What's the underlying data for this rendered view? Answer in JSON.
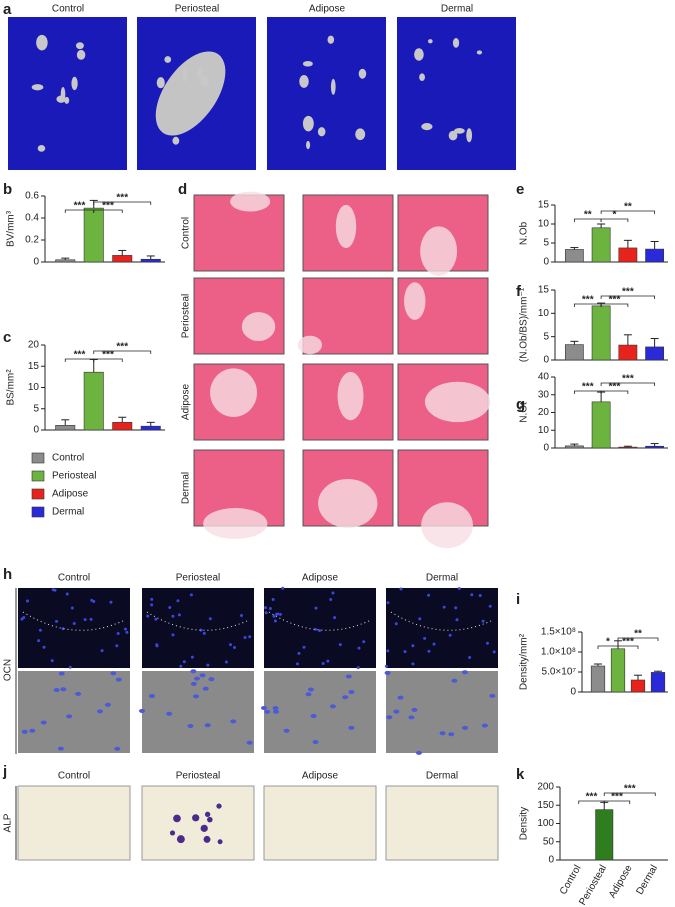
{
  "figure": {
    "a": {
      "letter": "a",
      "columns": [
        "Control",
        "Periosteal",
        "Adipose",
        "Dermal"
      ]
    },
    "d": {
      "letter": "d",
      "rows": [
        "Control",
        "Periosteal",
        "Adipose",
        "Dermal"
      ]
    },
    "h": {
      "letter": "h",
      "columns": [
        "Control",
        "Periosteal",
        "Adipose",
        "Dermal"
      ],
      "row_label": "OCN"
    },
    "j": {
      "letter": "j",
      "columns": [
        "Control",
        "Periosteal",
        "Adipose",
        "Dermal"
      ],
      "row_label": "ALP"
    }
  },
  "legend": [
    {
      "name": "Control",
      "color": "#8c8c8c"
    },
    {
      "name": "Periosteal",
      "color": "#6db33f"
    },
    {
      "name": "Adipose",
      "color": "#e8231e"
    },
    {
      "name": "Dermal",
      "color": "#2a2ad8"
    }
  ],
  "chart_data": [
    {
      "letter": "b",
      "type": "bar",
      "ylabel": "BV/mm³",
      "categories": [
        null,
        null,
        null,
        null
      ],
      "colors": [
        "#8c8c8c",
        "#6db33f",
        "#e8231e",
        "#2a2ad8"
      ],
      "values": [
        0.02,
        0.49,
        0.06,
        0.025
      ],
      "errors": [
        0.015,
        0.07,
        0.045,
        0.03
      ],
      "ylim": [
        0,
        0.6
      ],
      "yticks": [
        0,
        0.2,
        0.4,
        0.6
      ],
      "significance": [
        {
          "label": "***",
          "between": [
            0,
            1
          ]
        },
        {
          "label": "***",
          "between": [
            1,
            2
          ]
        },
        {
          "label": "***",
          "between": [
            1,
            3
          ]
        }
      ]
    },
    {
      "letter": "c",
      "type": "bar",
      "ylabel": "BS/mm²",
      "categories": [
        null,
        null,
        null,
        null
      ],
      "colors": [
        "#8c8c8c",
        "#6db33f",
        "#e8231e",
        "#2a2ad8"
      ],
      "values": [
        1.1,
        13.6,
        1.8,
        0.9
      ],
      "errors": [
        1.3,
        3,
        1.2,
        0.9
      ],
      "ylim": [
        0,
        20
      ],
      "yticks": [
        0,
        5,
        10,
        15,
        20
      ],
      "significance": [
        {
          "label": "***",
          "between": [
            0,
            1
          ]
        },
        {
          "label": "***",
          "between": [
            1,
            2
          ]
        },
        {
          "label": "***",
          "between": [
            1,
            3
          ]
        }
      ]
    },
    {
      "letter": "e",
      "type": "bar",
      "ylabel": "N.Ob",
      "categories": [
        null,
        null,
        null,
        null
      ],
      "colors": [
        "#8c8c8c",
        "#6db33f",
        "#e8231e",
        "#2a2ad8"
      ],
      "values": [
        3.3,
        9.0,
        3.7,
        3.4
      ],
      "errors": [
        0.5,
        1,
        2,
        2
      ],
      "ylim": [
        0,
        15
      ],
      "yticks": [
        0,
        5,
        10,
        15
      ],
      "significance": [
        {
          "label": "**",
          "between": [
            0,
            1
          ]
        },
        {
          "label": "*",
          "between": [
            1,
            2
          ]
        },
        {
          "label": "**",
          "between": [
            1,
            3
          ]
        }
      ]
    },
    {
      "letter": "f",
      "type": "bar",
      "ylabel": "(N.Ob/BS)/mm⁻¹",
      "categories": [
        null,
        null,
        null,
        null
      ],
      "colors": [
        "#8c8c8c",
        "#6db33f",
        "#e8231e",
        "#2a2ad8"
      ],
      "values": [
        3.3,
        11.6,
        3.2,
        2.8
      ],
      "errors": [
        0.7,
        0.6,
        2.2,
        1.8
      ],
      "ylim": [
        0,
        15
      ],
      "yticks": [
        0,
        5,
        10,
        15
      ],
      "significance": [
        {
          "label": "***",
          "between": [
            0,
            1
          ]
        },
        {
          "label": "***",
          "between": [
            1,
            2
          ]
        },
        {
          "label": "***",
          "between": [
            1,
            3
          ]
        }
      ]
    },
    {
      "letter": "g",
      "type": "bar",
      "ylabel": "N.Ot",
      "categories": [
        null,
        null,
        null,
        null
      ],
      "colors": [
        "#8c8c8c",
        "#6db33f",
        "#e8231e",
        "#2a2ad8"
      ],
      "values": [
        1.2,
        26,
        0.5,
        1
      ],
      "errors": [
        1,
        5.5,
        0.5,
        1.5
      ],
      "ylim": [
        0,
        40
      ],
      "yticks": [
        0,
        10,
        20,
        30,
        40
      ],
      "significance": [
        {
          "label": "***",
          "between": [
            0,
            1
          ]
        },
        {
          "label": "***",
          "between": [
            1,
            2
          ]
        },
        {
          "label": "***",
          "between": [
            1,
            3
          ]
        }
      ]
    },
    {
      "letter": "i",
      "type": "bar",
      "ylabel": "Density/mm²",
      "categories": [
        null,
        null,
        null,
        null
      ],
      "colors": [
        "#8c8c8c",
        "#6db33f",
        "#e8231e",
        "#2a2ad8"
      ],
      "values": [
        65000000,
        108000000,
        30000000,
        49000000
      ],
      "errors": [
        5000000,
        20000000,
        12000000,
        3000000
      ],
      "ylim": [
        0,
        150000000
      ],
      "yticks": [
        0,
        {
          "value": 50000000,
          "label": "5.0×10⁷"
        },
        {
          "value": 100000000,
          "label": "1.0×10⁸"
        },
        {
          "value": 150000000,
          "label": "1.5×10⁸"
        }
      ],
      "significance": [
        {
          "label": "*",
          "between": [
            0,
            1
          ]
        },
        {
          "label": "***",
          "between": [
            1,
            2
          ]
        },
        {
          "label": "**",
          "between": [
            1,
            3
          ]
        }
      ]
    },
    {
      "letter": "k",
      "type": "bar",
      "ylabel": "Density",
      "categories": [
        "Control",
        "Periosteal",
        "Adipose",
        "Dermal"
      ],
      "colors": [
        "#2f7d1f",
        "#2f7d1f",
        "#2f7d1f",
        "#2f7d1f"
      ],
      "values": [
        0,
        138,
        0,
        0
      ],
      "errors": [
        0,
        20,
        0,
        0
      ],
      "ylim": [
        0,
        200
      ],
      "yticks": [
        0,
        50,
        100,
        150,
        200
      ],
      "significance": [
        {
          "label": "***",
          "between": [
            0,
            1
          ]
        },
        {
          "label": "***",
          "between": [
            1,
            2
          ]
        },
        {
          "label": "***",
          "between": [
            1,
            3
          ]
        }
      ]
    }
  ]
}
